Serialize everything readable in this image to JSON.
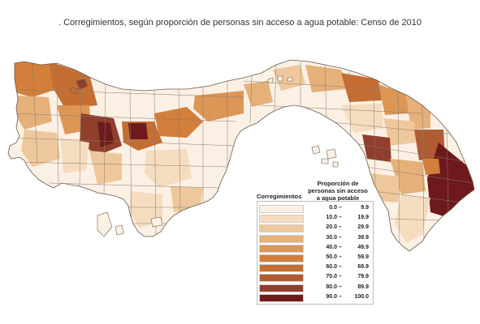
{
  "title": ". Corregimientos, según proporción de personas sin acceso a agua potable: Censo de 2010",
  "legend": {
    "title_left": "Corregimientos",
    "title_right": "Proporción de personas sin acceso a agua potable",
    "classes": [
      {
        "from": "0.0",
        "to": "9.9",
        "color": "#fbf0e4"
      },
      {
        "from": "10.0",
        "to": "19.9",
        "color": "#f5dcbf"
      },
      {
        "from": "20.0",
        "to": "29.9",
        "color": "#eec89c"
      },
      {
        "from": "30.0",
        "to": "39.9",
        "color": "#e6b07a"
      },
      {
        "from": "40.0",
        "to": "49.9",
        "color": "#dc9655"
      },
      {
        "from": "50.0",
        "to": "59.9",
        "color": "#d17f3a"
      },
      {
        "from": "60.0",
        "to": "69.9",
        "color": "#c46e33"
      },
      {
        "from": "70.0",
        "to": "79.9",
        "color": "#b05b32"
      },
      {
        "from": "80.0",
        "to": "89.9",
        "color": "#8f3f2c"
      },
      {
        "from": "90.0",
        "to": "100.0",
        "color": "#6e1a1c"
      }
    ]
  },
  "map": {
    "outline_color": "#6b5a4d",
    "district_line_color": "#8a7a6e"
  }
}
